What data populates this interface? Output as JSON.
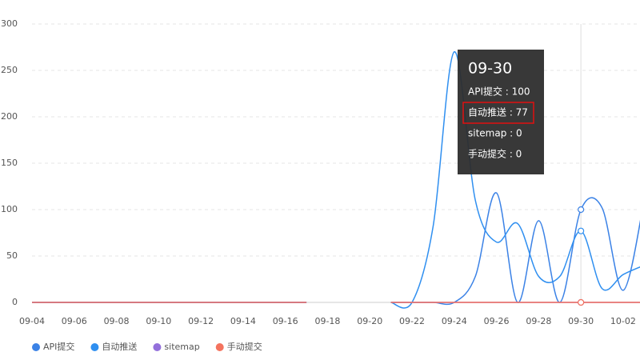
{
  "chart_data": {
    "type": "line",
    "categories": [
      "09-04",
      null,
      "09-06",
      null,
      "09-08",
      null,
      "09-10",
      null,
      "09-12",
      null,
      "09-14",
      null,
      "09-16",
      null,
      "09-18",
      null,
      "09-20",
      null,
      "09-22",
      null,
      "09-24",
      null,
      "09-26",
      null,
      "09-28",
      null,
      "09-30",
      null,
      "10-02",
      null
    ],
    "series": [
      {
        "name": "API提交",
        "color": "#3b82e6",
        "values": [
          0,
          0,
          0,
          0,
          0,
          0,
          0,
          0,
          0,
          0,
          0,
          0,
          0,
          0,
          null,
          null,
          null,
          0,
          0,
          0,
          0,
          28,
          118,
          0,
          88,
          0,
          100,
          102,
          13,
          110
        ]
      },
      {
        "name": "自动推送",
        "color": "#2f8ff0",
        "values": [
          0,
          0,
          0,
          0,
          0,
          0,
          0,
          0,
          0,
          0,
          0,
          0,
          0,
          0,
          null,
          null,
          null,
          0,
          0,
          82,
          270,
          110,
          65,
          85,
          28,
          28,
          77,
          15,
          30,
          40
        ]
      },
      {
        "name": "sitemap",
        "color": "#9370db",
        "values": [
          0,
          0,
          0,
          0,
          0,
          0,
          0,
          0,
          0,
          0,
          0,
          0,
          0,
          0,
          null,
          null,
          null,
          0,
          0,
          0,
          0,
          0,
          0,
          0,
          0,
          0,
          0,
          0,
          0,
          0
        ]
      },
      {
        "name": "手动提交",
        "color": "#f4735e",
        "values": [
          0,
          0,
          0,
          0,
          0,
          0,
          0,
          0,
          0,
          0,
          0,
          0,
          0,
          0,
          null,
          null,
          null,
          0,
          0,
          0,
          0,
          0,
          0,
          0,
          0,
          0,
          0,
          0,
          0,
          0
        ]
      }
    ],
    "ylim": [
      0,
      300
    ],
    "yticks": [
      0,
      50,
      100,
      150,
      200,
      250,
      300
    ],
    "grid": true,
    "smooth": true,
    "legend": "bottom",
    "tooltip": {
      "index": 26,
      "title": "09-30",
      "rows": [
        "API提交 : 100",
        "自动推送 : 77",
        "sitemap : 0",
        "手动提交 : 0"
      ],
      "highlight": 1
    }
  }
}
